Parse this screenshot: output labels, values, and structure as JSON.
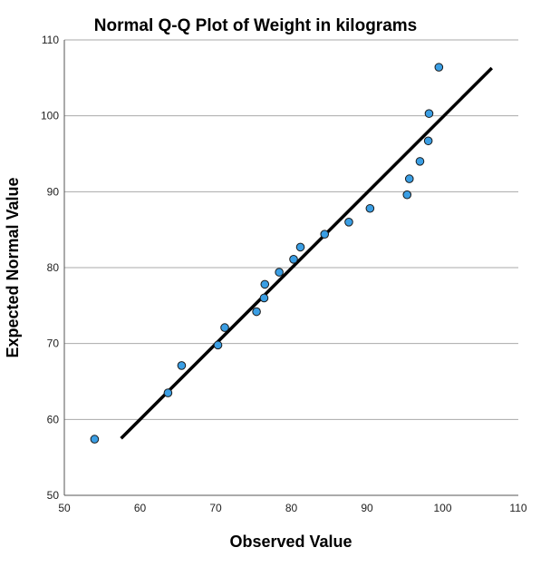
{
  "chart_data": {
    "type": "scatter",
    "title": "Normal Q-Q Plot of Weight in kilograms",
    "xlabel": "Observed Value",
    "ylabel": "Expected Normal Value",
    "xlim": [
      50,
      110
    ],
    "ylim": [
      50,
      110
    ],
    "xticks": [
      "50",
      "60",
      "70",
      "80",
      "90",
      "100",
      "110"
    ],
    "yticks": [
      "50",
      "60",
      "70",
      "80",
      "90",
      "100",
      "110"
    ],
    "grid": "horizontal",
    "colors": {
      "point": "#3a9ee4",
      "line": "#000000",
      "grid": "#a9a9a9"
    },
    "reference_line": {
      "x": [
        57.5,
        106.5
      ],
      "y": [
        57.5,
        106.3
      ]
    },
    "points": [
      {
        "x": 54.0,
        "y": 57.4
      },
      {
        "x": 63.7,
        "y": 63.5
      },
      {
        "x": 65.5,
        "y": 67.1
      },
      {
        "x": 70.3,
        "y": 69.8
      },
      {
        "x": 71.2,
        "y": 72.1
      },
      {
        "x": 75.4,
        "y": 74.2
      },
      {
        "x": 76.4,
        "y": 76.0
      },
      {
        "x": 76.5,
        "y": 77.8
      },
      {
        "x": 78.4,
        "y": 79.4
      },
      {
        "x": 80.3,
        "y": 81.1
      },
      {
        "x": 81.2,
        "y": 82.7
      },
      {
        "x": 84.4,
        "y": 84.4
      },
      {
        "x": 87.6,
        "y": 86.0
      },
      {
        "x": 90.4,
        "y": 87.8
      },
      {
        "x": 95.3,
        "y": 89.6
      },
      {
        "x": 95.6,
        "y": 91.7
      },
      {
        "x": 97.0,
        "y": 94.0
      },
      {
        "x": 98.1,
        "y": 96.7
      },
      {
        "x": 98.2,
        "y": 100.3
      },
      {
        "x": 99.5,
        "y": 106.4
      }
    ]
  }
}
